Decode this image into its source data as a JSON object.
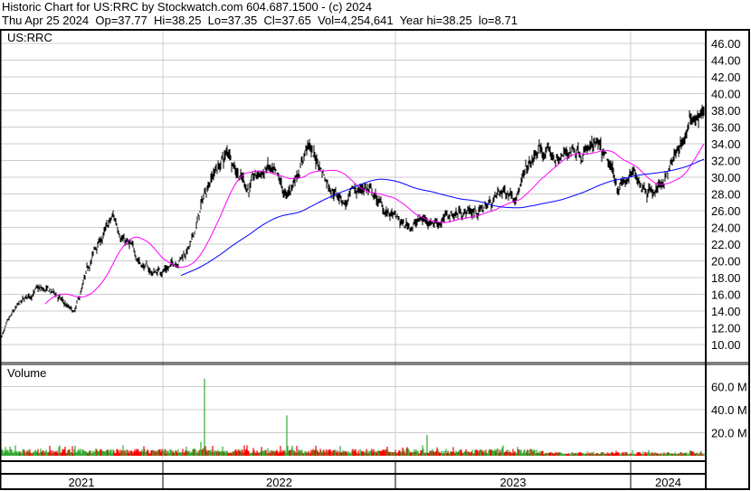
{
  "header": {
    "title": "Historic Chart for US:RRC by Stockwatch.com 604.687.1500 - (c) 2024",
    "quote": "Thu Apr 25 2024  Op=37.77  Hi=38.25  Lo=37.35  Cl=37.65  Vol=4,254,641  Year hi=38.25  lo=8.71"
  },
  "chart_data": [
    {
      "type": "ohlc",
      "panel": "price",
      "label": "US:RRC",
      "ylim": [
        8,
        47
      ],
      "yticks": [
        "10.00",
        "12.00",
        "14.00",
        "16.00",
        "18.00",
        "20.00",
        "22.00",
        "24.00",
        "26.00",
        "28.00",
        "30.00",
        "32.00",
        "34.00",
        "36.00",
        "38.00",
        "40.00",
        "42.00",
        "44.00",
        "46.00"
      ],
      "grid": true,
      "bar_color": "#000000",
      "moving_averages": [
        {
          "period": 50,
          "color": "#ff00ff"
        },
        {
          "period": 200,
          "color": "#0000ff"
        }
      ],
      "monthly_close": [
        [
          "2021-04",
          10
        ],
        [
          "2021-05",
          14
        ],
        [
          "2021-06",
          16.5
        ],
        [
          "2021-07",
          16
        ],
        [
          "2021-08",
          13.5
        ],
        [
          "2021-09",
          21
        ],
        [
          "2021-10",
          25
        ],
        [
          "2021-11",
          21
        ],
        [
          "2021-12",
          18.5
        ],
        [
          "2022-01",
          19.5
        ],
        [
          "2022-02",
          22
        ],
        [
          "2022-03",
          30
        ],
        [
          "2022-04",
          33
        ],
        [
          "2022-05",
          29
        ],
        [
          "2022-06",
          31
        ],
        [
          "2022-07",
          27
        ],
        [
          "2022-08",
          34
        ],
        [
          "2022-09",
          30
        ],
        [
          "2022-10",
          27
        ],
        [
          "2022-11",
          29
        ],
        [
          "2022-12",
          26
        ],
        [
          "2023-01",
          24
        ],
        [
          "2023-02",
          25
        ],
        [
          "2023-03",
          25
        ],
        [
          "2023-04",
          26
        ],
        [
          "2023-05",
          26
        ],
        [
          "2023-06",
          28
        ],
        [
          "2023-07",
          29
        ],
        [
          "2023-08",
          33
        ],
        [
          "2023-09",
          32
        ],
        [
          "2023-10",
          34
        ],
        [
          "2023-11",
          33
        ],
        [
          "2023-12",
          29
        ],
        [
          "2024-01",
          30
        ],
        [
          "2024-02",
          28.5
        ],
        [
          "2024-03",
          32
        ],
        [
          "2024-04",
          37.65
        ]
      ]
    },
    {
      "type": "bar",
      "panel": "volume",
      "label": "Volume",
      "ylim": [
        0,
        80
      ],
      "unit": "M",
      "yticks": [
        "20.0 M",
        "40.0 M",
        "60.0 M"
      ],
      "up_color": "#33aa33",
      "down_color": "#ff0000",
      "typical_volume_m": [
        2,
        6
      ],
      "spikes": [
        [
          "2022-03-01",
          12
        ],
        [
          "2022-03-08",
          67
        ],
        [
          "2022-07-15",
          35
        ],
        [
          "2023-02-20",
          18
        ]
      ]
    }
  ],
  "x_axis": {
    "years": [
      "2021",
      "2022",
      "2023",
      "2024"
    ]
  }
}
